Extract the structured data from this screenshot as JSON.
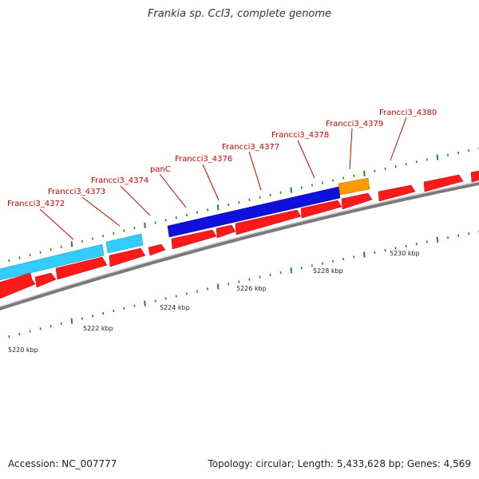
{
  "title": "Frankia sp. CcI3, complete genome",
  "footer": {
    "accession": "Accession: NC_007777",
    "summary": "Topology: circular; Length: 5,433,628 bp; Genes: 4,569"
  },
  "colors": {
    "backbone": "#888888",
    "cds_forward": "#ff1a1a",
    "gene_cyan": "#33ccff",
    "gene_blue": "#1010dd",
    "gene_orange": "#ff9900",
    "tick": "#228B22",
    "label": "#cc0000"
  },
  "scale_labels": [
    "5220 kbp",
    "5222 kbp",
    "5224 kbp",
    "5226 kbp",
    "5228 kbp",
    "5230 kbp"
  ],
  "gene_labels": [
    "Francci3_4372",
    "Francci3_4373",
    "Francci3_4374",
    "panC",
    "Francci3_4376",
    "Francci3_4377",
    "Francci3_4378",
    "Francci3_4379",
    "Francci3_4380"
  ]
}
